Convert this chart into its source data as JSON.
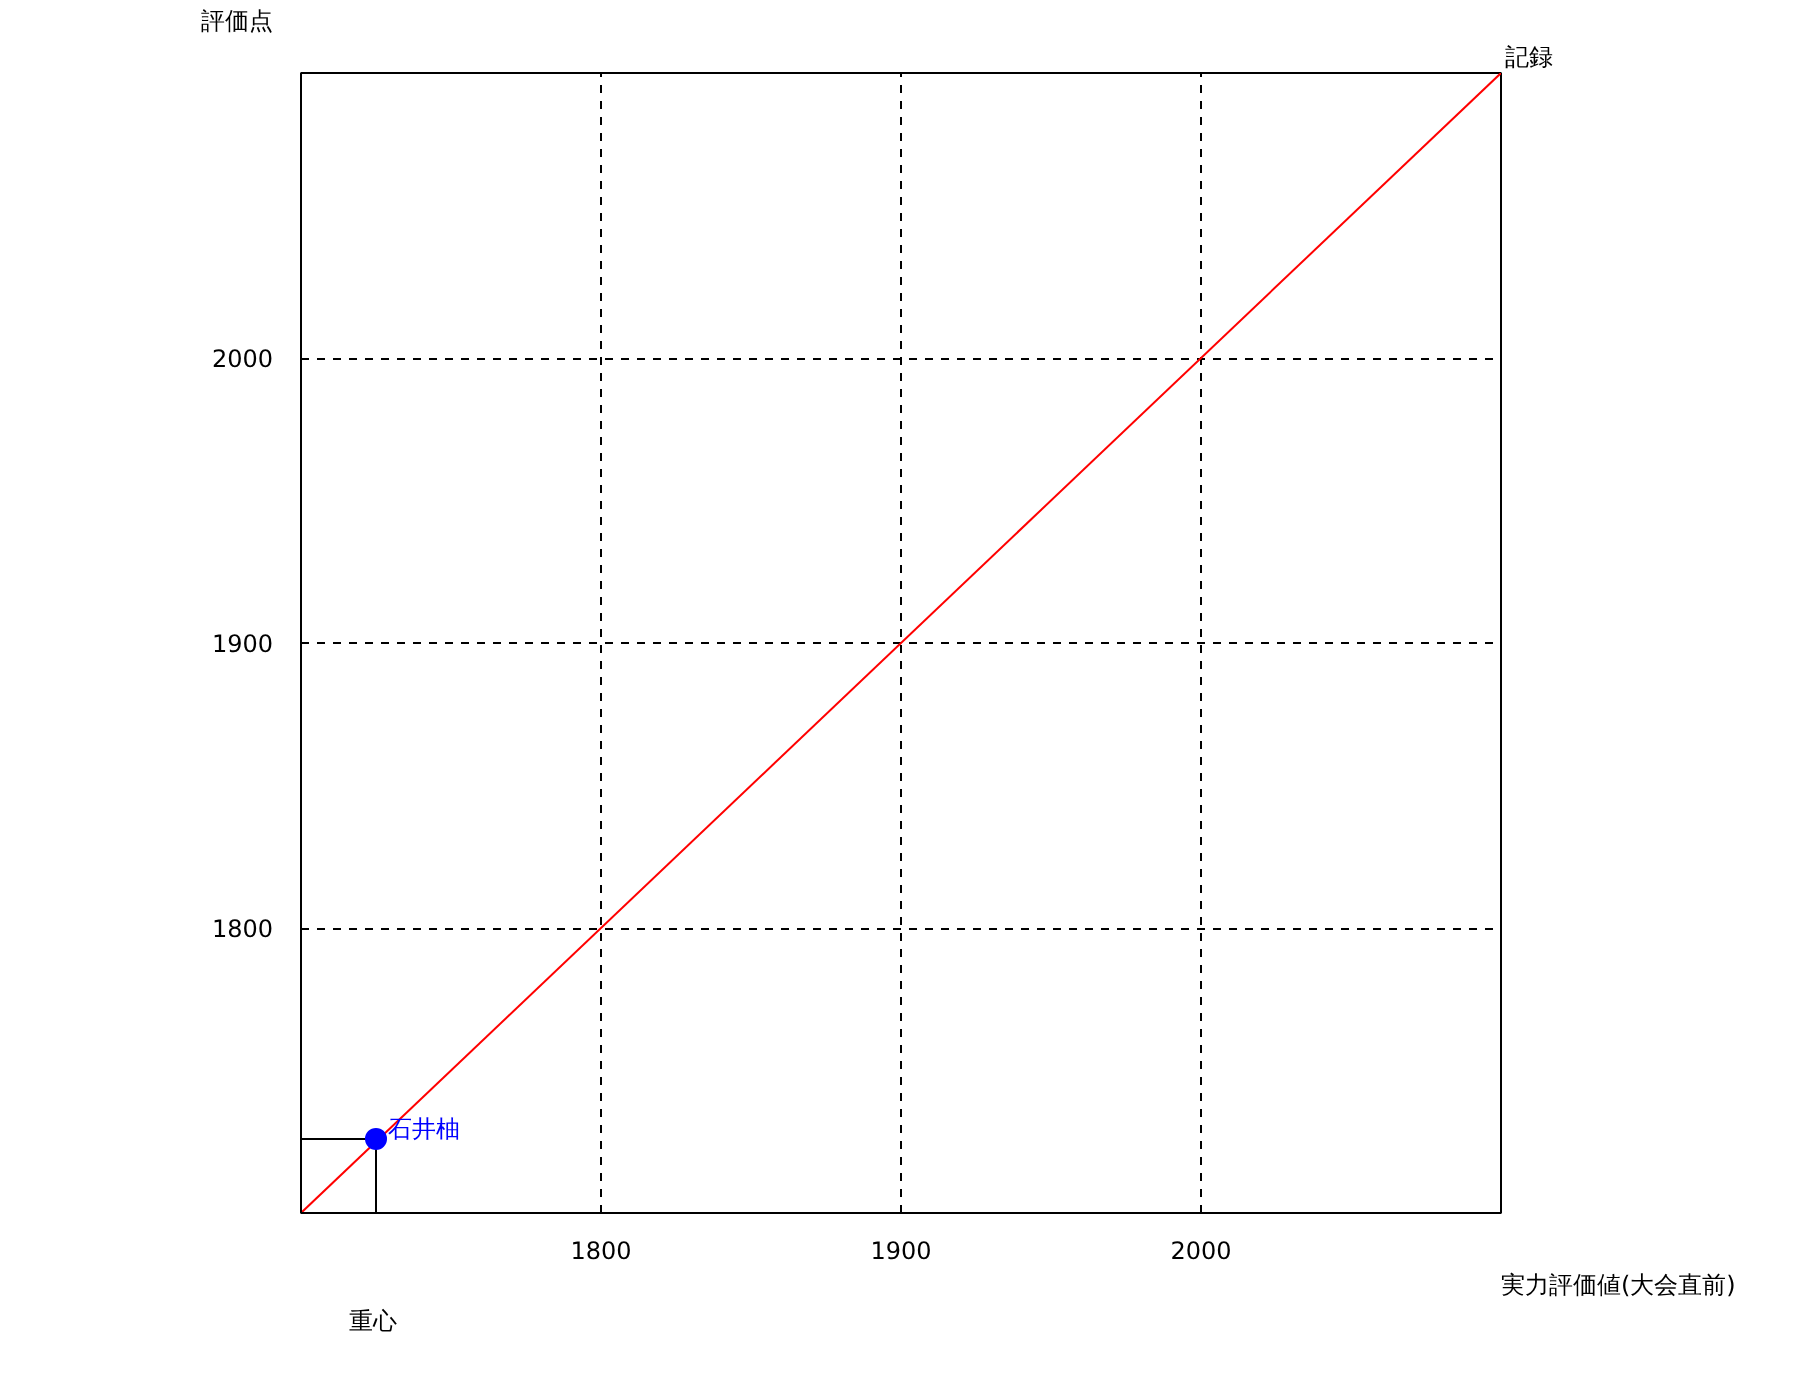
{
  "chart_data": {
    "type": "scatter",
    "xlabel": "実力評価値(大会直前)",
    "ylabel": "評価点",
    "xlim": [
      1700,
      2100
    ],
    "ylim": [
      1700,
      2100
    ],
    "xticks": [
      1800,
      1900,
      2000
    ],
    "yticks": [
      1800,
      1900,
      2000
    ],
    "grid": true,
    "legend": false,
    "series": [
      {
        "name": "記録",
        "type": "line",
        "marker": "none",
        "color": "#ff0000",
        "x": [
          1700,
          2100
        ],
        "values": [
          1700,
          2100
        ]
      },
      {
        "type": "line",
        "marker": "none",
        "color": "#000000",
        "x": [
          1700,
          1725
        ],
        "values": [
          1726,
          1726
        ]
      },
      {
        "type": "line",
        "marker": "none",
        "color": "#000000",
        "x": [
          1725,
          1725
        ],
        "values": [
          1700,
          1726
        ]
      },
      {
        "name": "石井柚",
        "marker": "circle",
        "color": "#0000ff",
        "x": [
          1725
        ],
        "values": [
          1726
        ]
      }
    ],
    "annotations": [
      "重心"
    ]
  }
}
